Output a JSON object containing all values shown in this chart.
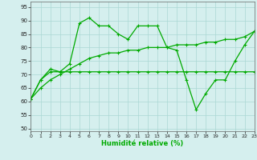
{
  "xlabel": "Humidité relative (%)",
  "bg_color": "#d5efee",
  "grid_color": "#aad8d3",
  "line_color": "#00aa00",
  "xlim": [
    0,
    23
  ],
  "ylim": [
    49,
    97
  ],
  "xticks": [
    0,
    1,
    2,
    3,
    4,
    5,
    6,
    7,
    8,
    9,
    10,
    11,
    12,
    13,
    14,
    15,
    16,
    17,
    18,
    19,
    20,
    21,
    22,
    23
  ],
  "yticks": [
    50,
    55,
    60,
    65,
    70,
    75,
    80,
    85,
    90,
    95
  ],
  "line1_y": [
    61,
    68,
    72,
    71,
    74,
    89,
    91,
    88,
    88,
    85,
    83,
    88,
    88,
    88,
    80,
    79,
    68,
    57,
    63,
    68,
    68,
    75,
    81,
    86
  ],
  "line2_y": [
    61,
    68,
    71,
    71,
    71,
    71,
    71,
    71,
    71,
    71,
    71,
    71,
    71,
    71,
    71,
    71,
    71,
    71,
    71,
    71,
    71,
    71,
    71,
    71
  ],
  "line3_y": [
    61,
    65,
    68,
    70,
    72,
    74,
    76,
    77,
    78,
    78,
    79,
    79,
    80,
    80,
    80,
    81,
    81,
    81,
    82,
    82,
    83,
    83,
    84,
    86
  ]
}
